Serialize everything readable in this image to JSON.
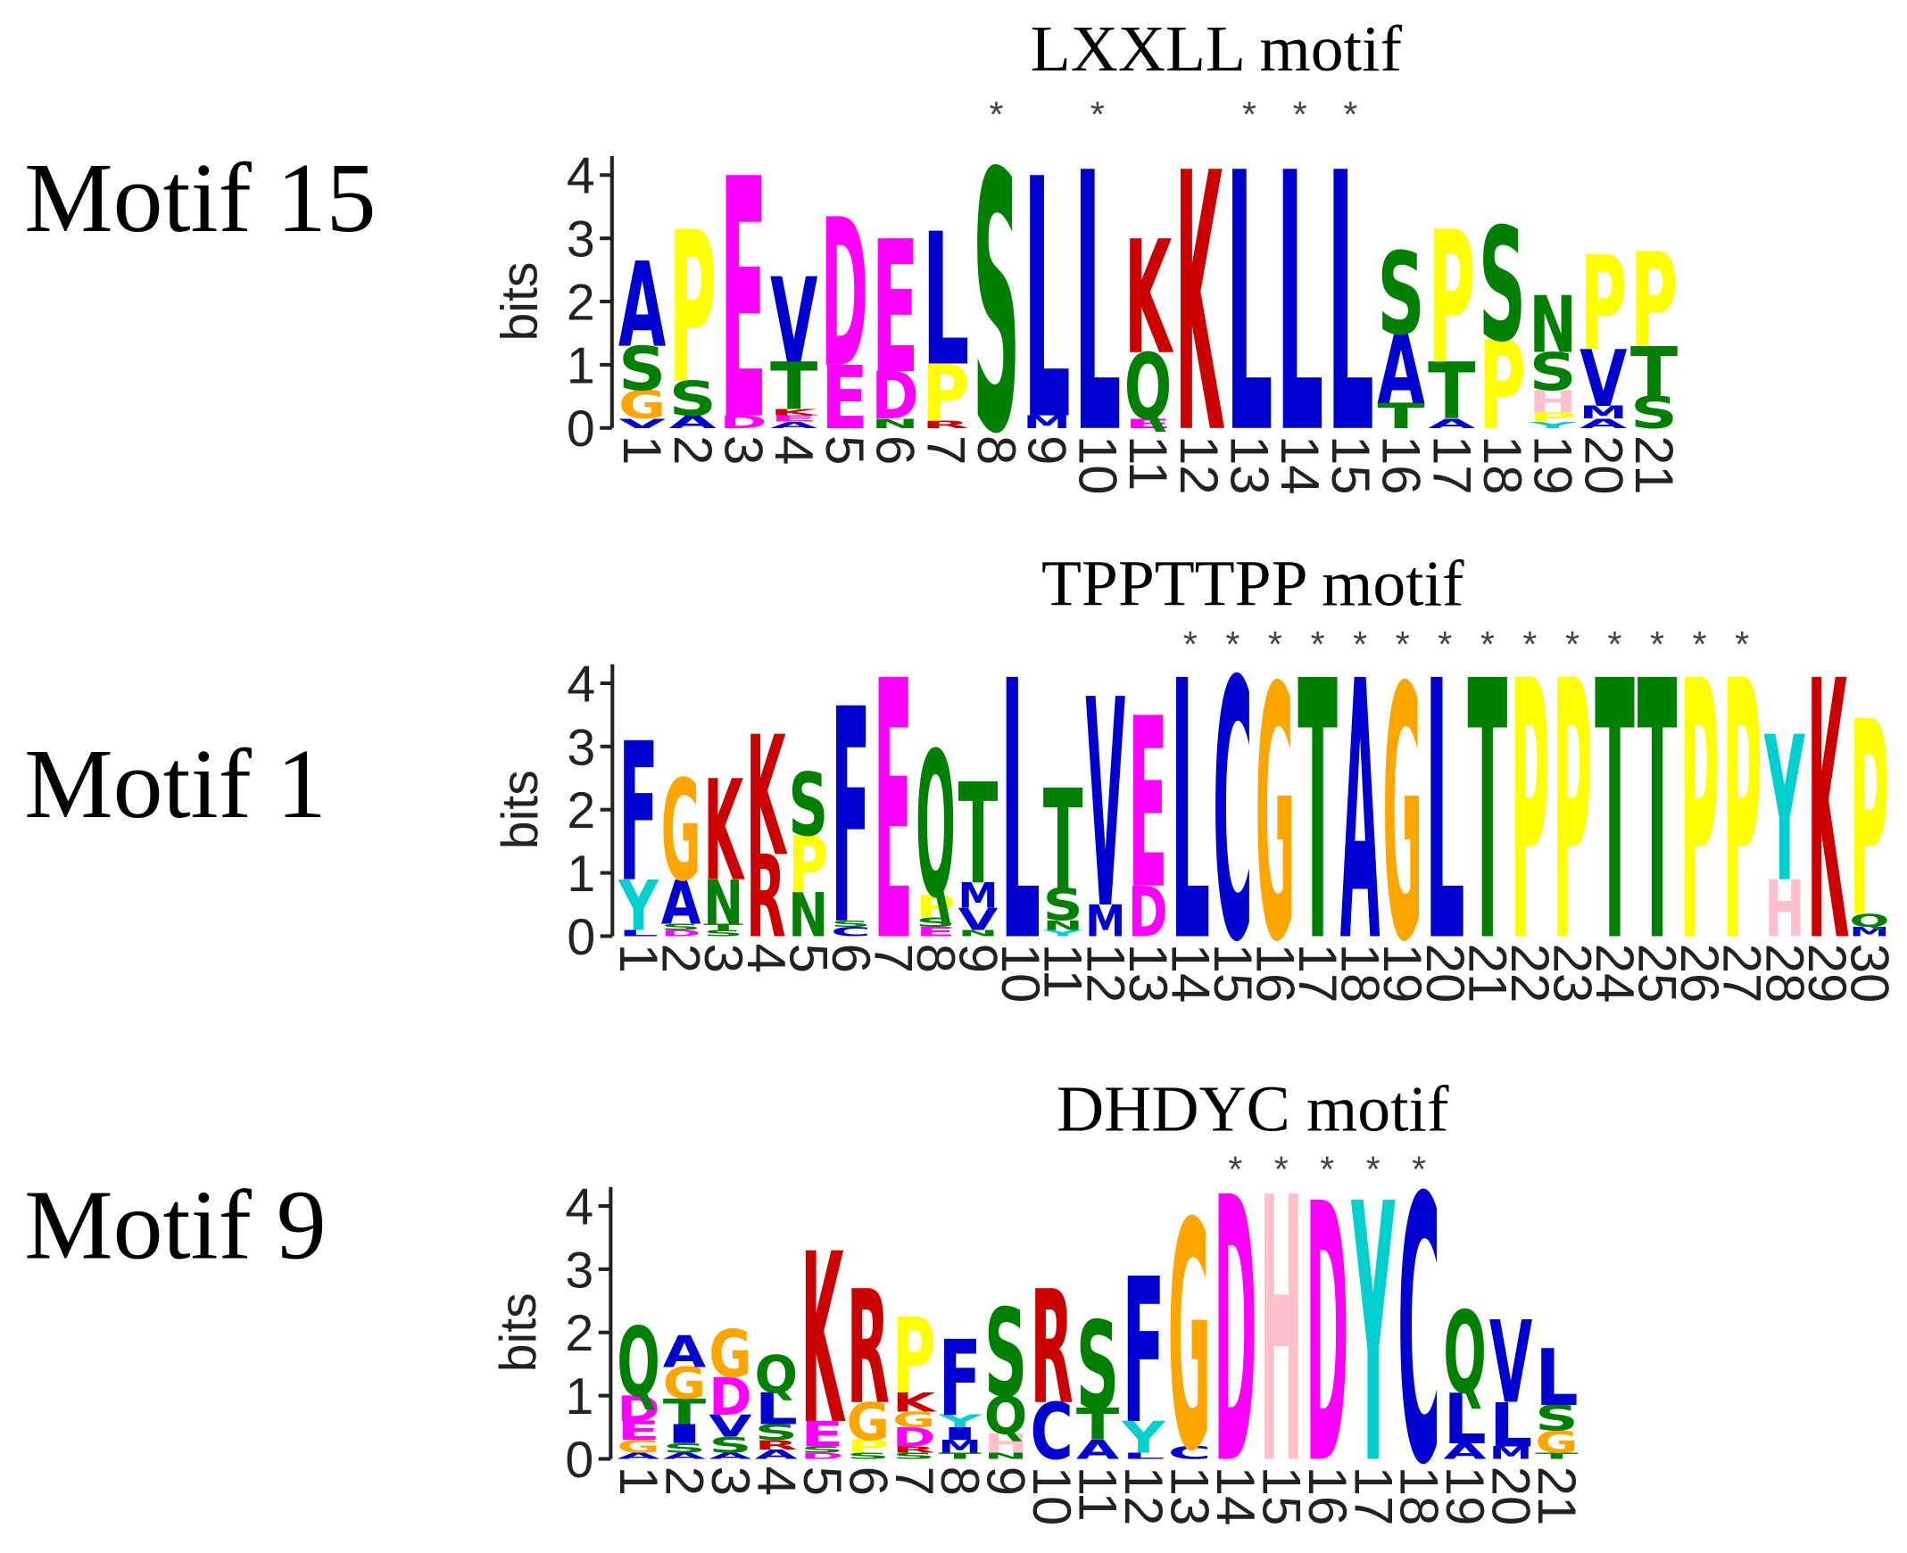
{
  "letter_colors": {
    "A": "#0000d0",
    "C": "#0000d0",
    "F": "#0000d0",
    "I": "#0000d0",
    "L": "#0000d0",
    "M": "#0000d0",
    "V": "#0000d0",
    "W": "#0000d0",
    "D": "#ff00ff",
    "E": "#ff00ff",
    "G": "#ffa500",
    "P": "#ffff00",
    "S": "#008000",
    "T": "#008000",
    "N": "#008000",
    "Q": "#008000",
    "K": "#cc0000",
    "R": "#cc0000",
    "H": "#ffc0cb",
    "Y": "#00d0d0"
  },
  "chart_data": [
    {
      "type": "logo",
      "panel_label": "Motif 15",
      "title": "LXXLL motif",
      "y_label": "bits",
      "ylim": [
        0,
        4.3
      ],
      "yticks": [
        0,
        1,
        2,
        3,
        4
      ],
      "categories": [
        1,
        2,
        3,
        4,
        5,
        6,
        7,
        8,
        9,
        10,
        11,
        12,
        13,
        14,
        15,
        16,
        17,
        18,
        19,
        20,
        21
      ],
      "markers": [
        null,
        null,
        null,
        null,
        null,
        null,
        null,
        "*",
        null,
        "*",
        null,
        null,
        "*",
        "*",
        "*",
        null,
        null,
        null,
        null,
        null,
        null
      ],
      "stacks": [
        [
          {
            "letter": "V",
            "height": 0.15
          },
          {
            "letter": "G",
            "height": 0.45
          },
          {
            "letter": "S",
            "height": 0.7
          },
          {
            "letter": "A",
            "height": 1.35
          }
        ],
        [
          {
            "letter": "A",
            "height": 0.2
          },
          {
            "letter": "S",
            "height": 0.55
          },
          {
            "letter": "P",
            "height": 2.4
          }
        ],
        [
          {
            "letter": "D",
            "height": 0.2
          },
          {
            "letter": "E",
            "height": 3.8
          }
        ],
        [
          {
            "letter": "A",
            "height": 0.1
          },
          {
            "letter": "E",
            "height": 0.1
          },
          {
            "letter": "K",
            "height": 0.1
          },
          {
            "letter": "T",
            "height": 0.75
          },
          {
            "letter": "V",
            "height": 1.35
          }
        ],
        [
          {
            "letter": "E",
            "height": 1.0
          },
          {
            "letter": "D",
            "height": 2.35
          }
        ],
        [
          {
            "letter": "N",
            "height": 0.15
          },
          {
            "letter": "D",
            "height": 0.75
          },
          {
            "letter": "E",
            "height": 2.1
          }
        ],
        [
          {
            "letter": "R",
            "height": 0.12
          },
          {
            "letter": "P",
            "height": 0.9
          },
          {
            "letter": "L",
            "height": 2.1
          }
        ],
        [
          {
            "letter": "S",
            "height": 4.1
          }
        ],
        [
          {
            "letter": "M",
            "height": 0.2
          },
          {
            "letter": "L",
            "height": 3.8
          }
        ],
        [
          {
            "letter": "L",
            "height": 4.1
          }
        ],
        [
          {
            "letter": "E",
            "height": 0.15
          },
          {
            "letter": "Q",
            "height": 1.05
          },
          {
            "letter": "K",
            "height": 1.8
          }
        ],
        [
          {
            "letter": "K",
            "height": 4.1
          }
        ],
        [
          {
            "letter": "L",
            "height": 4.1
          }
        ],
        [
          {
            "letter": "L",
            "height": 4.1
          }
        ],
        [
          {
            "letter": "L",
            "height": 4.1
          }
        ],
        [
          {
            "letter": "T",
            "height": 0.4
          },
          {
            "letter": "A",
            "height": 1.1
          },
          {
            "letter": "S",
            "height": 1.3
          }
        ],
        [
          {
            "letter": "A",
            "height": 0.15
          },
          {
            "letter": "T",
            "height": 0.9
          },
          {
            "letter": "P",
            "height": 2.1
          }
        ],
        [
          {
            "letter": "P",
            "height": 1.4
          },
          {
            "letter": "S",
            "height": 1.8
          }
        ],
        [
          {
            "letter": "Y",
            "height": 0.1
          },
          {
            "letter": "P",
            "height": 0.15
          },
          {
            "letter": "H",
            "height": 0.35
          },
          {
            "letter": "S",
            "height": 0.6
          },
          {
            "letter": "N",
            "height": 0.9
          }
        ],
        [
          {
            "letter": "A",
            "height": 0.15
          },
          {
            "letter": "M",
            "height": 0.2
          },
          {
            "letter": "V",
            "height": 0.9
          },
          {
            "letter": "P",
            "height": 1.5
          }
        ],
        [
          {
            "letter": "S",
            "height": 0.5
          },
          {
            "letter": "T",
            "height": 0.8
          },
          {
            "letter": "P",
            "height": 1.5
          }
        ]
      ]
    },
    {
      "type": "logo",
      "panel_label": "Motif 1",
      "title": "TPPTTPP motif",
      "y_label": "bits",
      "ylim": [
        0,
        4.3
      ],
      "yticks": [
        0,
        1,
        2,
        3,
        4
      ],
      "categories": [
        1,
        2,
        3,
        4,
        5,
        6,
        7,
        8,
        9,
        10,
        11,
        12,
        13,
        14,
        15,
        16,
        17,
        18,
        19,
        20,
        21,
        22,
        23,
        24,
        25,
        26,
        27,
        28,
        29,
        30
      ],
      "markers": [
        null,
        null,
        null,
        null,
        null,
        null,
        null,
        null,
        null,
        null,
        null,
        null,
        null,
        "*",
        "*",
        "*",
        "*",
        "*",
        "*",
        "*",
        "*",
        "*",
        "*",
        "*",
        "*",
        "*",
        "*",
        null,
        null,
        null
      ],
      "stacks": [
        [
          {
            "letter": "L",
            "height": 0.1
          },
          {
            "letter": "Y",
            "height": 0.8
          },
          {
            "letter": "F",
            "height": 2.2
          }
        ],
        [
          {
            "letter": "D",
            "height": 0.1
          },
          {
            "letter": "S",
            "height": 0.1
          },
          {
            "letter": "A",
            "height": 0.7
          },
          {
            "letter": "G",
            "height": 1.6
          }
        ],
        [
          {
            "letter": "S",
            "height": 0.1
          },
          {
            "letter": "T",
            "height": 0.1
          },
          {
            "letter": "N",
            "height": 0.7
          },
          {
            "letter": "K",
            "height": 1.6
          }
        ],
        [
          {
            "letter": "R",
            "height": 1.3
          },
          {
            "letter": "K",
            "height": 1.9
          }
        ],
        [
          {
            "letter": "N",
            "height": 0.7
          },
          {
            "letter": "P",
            "height": 0.9
          },
          {
            "letter": "S",
            "height": 1.0
          }
        ],
        [
          {
            "letter": "C",
            "height": 0.15
          },
          {
            "letter": "S",
            "height": 0.1
          },
          {
            "letter": "F",
            "height": 3.4
          }
        ],
        [
          {
            "letter": "E",
            "height": 4.1
          }
        ],
        [
          {
            "letter": "E",
            "height": 0.15
          },
          {
            "letter": "S",
            "height": 0.15
          },
          {
            "letter": "P",
            "height": 0.35
          },
          {
            "letter": "Q",
            "height": 2.3
          }
        ],
        [
          {
            "letter": "N",
            "height": 0.1
          },
          {
            "letter": "V",
            "height": 0.35
          },
          {
            "letter": "M",
            "height": 0.4
          },
          {
            "letter": "T",
            "height": 1.6
          }
        ],
        [
          {
            "letter": "L",
            "height": 4.1
          }
        ],
        [
          {
            "letter": "Y",
            "height": 0.1
          },
          {
            "letter": "N",
            "height": 0.15
          },
          {
            "letter": "S",
            "height": 0.5
          },
          {
            "letter": "T",
            "height": 1.6
          }
        ],
        [
          {
            "letter": "M",
            "height": 0.5
          },
          {
            "letter": "V",
            "height": 3.3
          }
        ],
        [
          {
            "letter": "D",
            "height": 0.8
          },
          {
            "letter": "E",
            "height": 2.7
          }
        ],
        [
          {
            "letter": "L",
            "height": 4.1
          }
        ],
        [
          {
            "letter": "C",
            "height": 4.1
          }
        ],
        [
          {
            "letter": "G",
            "height": 4.0
          }
        ],
        [
          {
            "letter": "T",
            "height": 4.1
          }
        ],
        [
          {
            "letter": "A",
            "height": 4.1
          }
        ],
        [
          {
            "letter": "G",
            "height": 4.0
          }
        ],
        [
          {
            "letter": "L",
            "height": 4.1
          }
        ],
        [
          {
            "letter": "T",
            "height": 4.1
          }
        ],
        [
          {
            "letter": "P",
            "height": 4.1
          }
        ],
        [
          {
            "letter": "P",
            "height": 4.1
          }
        ],
        [
          {
            "letter": "T",
            "height": 4.1
          }
        ],
        [
          {
            "letter": "T",
            "height": 4.1
          }
        ],
        [
          {
            "letter": "P",
            "height": 4.1
          }
        ],
        [
          {
            "letter": "P",
            "height": 4.1
          }
        ],
        [
          {
            "letter": "H",
            "height": 0.9
          },
          {
            "letter": "Y",
            "height": 2.3
          }
        ],
        [
          {
            "letter": "K",
            "height": 4.1
          }
        ],
        [
          {
            "letter": "M",
            "height": 0.15
          },
          {
            "letter": "Q",
            "height": 0.2
          },
          {
            "letter": "P",
            "height": 3.1
          }
        ]
      ]
    },
    {
      "type": "logo",
      "panel_label": "Motif 9",
      "title": "DHDYC motif",
      "y_label": "bits",
      "ylim": [
        0,
        4.3
      ],
      "yticks": [
        0,
        1,
        2,
        3,
        4
      ],
      "categories": [
        1,
        2,
        3,
        4,
        5,
        6,
        7,
        8,
        9,
        10,
        11,
        12,
        13,
        14,
        15,
        16,
        17,
        18,
        19,
        20,
        21
      ],
      "markers": [
        null,
        null,
        null,
        null,
        null,
        null,
        null,
        null,
        null,
        null,
        null,
        null,
        null,
        "*",
        "*",
        "*",
        "*",
        "*",
        null,
        null,
        null
      ],
      "stacks": [
        [
          {
            "letter": "A",
            "height": 0.1
          },
          {
            "letter": "G",
            "height": 0.2
          },
          {
            "letter": "E",
            "height": 0.3
          },
          {
            "letter": "D",
            "height": 0.4
          },
          {
            "letter": "Q",
            "height": 1.1
          }
        ],
        [
          {
            "letter": "A",
            "height": 0.1
          },
          {
            "letter": "S",
            "height": 0.15
          },
          {
            "letter": "I",
            "height": 0.3
          },
          {
            "letter": "T",
            "height": 0.4
          },
          {
            "letter": "G",
            "height": 0.5
          },
          {
            "letter": "A",
            "height": 0.5
          }
        ],
        [
          {
            "letter": "A",
            "height": 0.1
          },
          {
            "letter": "S",
            "height": 0.25
          },
          {
            "letter": "V",
            "height": 0.35
          },
          {
            "letter": "D",
            "height": 0.6
          },
          {
            "letter": "G",
            "height": 0.75
          }
        ],
        [
          {
            "letter": "A",
            "height": 0.15
          },
          {
            "letter": "R",
            "height": 0.15
          },
          {
            "letter": "S",
            "height": 0.25
          },
          {
            "letter": "L",
            "height": 0.5
          },
          {
            "letter": "Q",
            "height": 0.6
          }
        ],
        [
          {
            "letter": "D",
            "height": 0.1
          },
          {
            "letter": "S",
            "height": 0.1
          },
          {
            "letter": "E",
            "height": 0.4
          },
          {
            "letter": "K",
            "height": 2.7
          }
        ],
        [
          {
            "letter": "S",
            "height": 0.1
          },
          {
            "letter": "P",
            "height": 0.2
          },
          {
            "letter": "G",
            "height": 0.6
          },
          {
            "letter": "R",
            "height": 1.8
          }
        ],
        [
          {
            "letter": "S",
            "height": 0.1
          },
          {
            "letter": "R",
            "height": 0.1
          },
          {
            "letter": "D",
            "height": 0.3
          },
          {
            "letter": "G",
            "height": 0.25
          },
          {
            "letter": "K",
            "height": 0.3
          },
          {
            "letter": "P",
            "height": 1.2
          }
        ],
        [
          {
            "letter": "T",
            "height": 0.1
          },
          {
            "letter": "M",
            "height": 0.2
          },
          {
            "letter": "I",
            "height": 0.2
          },
          {
            "letter": "Y",
            "height": 0.2
          },
          {
            "letter": "F",
            "height": 1.2
          }
        ],
        [
          {
            "letter": "N",
            "height": 0.1
          },
          {
            "letter": "H",
            "height": 0.3
          },
          {
            "letter": "Q",
            "height": 0.6
          },
          {
            "letter": "S",
            "height": 1.4
          }
        ],
        [
          {
            "letter": "C",
            "height": 0.9
          },
          {
            "letter": "R",
            "height": 1.8
          }
        ],
        [
          {
            "letter": "A",
            "height": 0.3
          },
          {
            "letter": "T",
            "height": 0.5
          },
          {
            "letter": "S",
            "height": 1.4
          }
        ],
        [
          {
            "letter": "L",
            "height": 0.1
          },
          {
            "letter": "Y",
            "height": 0.5
          },
          {
            "letter": "F",
            "height": 2.3
          }
        ],
        [
          {
            "letter": "C",
            "height": 0.2
          },
          {
            "letter": "G",
            "height": 3.6
          }
        ],
        [
          {
            "letter": "D",
            "height": 4.2
          }
        ],
        [
          {
            "letter": "H",
            "height": 4.2
          }
        ],
        [
          {
            "letter": "D",
            "height": 4.1
          }
        ],
        [
          {
            "letter": "Y",
            "height": 4.1
          }
        ],
        [
          {
            "letter": "C",
            "height": 4.2
          }
        ],
        [
          {
            "letter": "A",
            "height": 0.25
          },
          {
            "letter": "L",
            "height": 0.8
          },
          {
            "letter": "Q",
            "height": 1.3
          }
        ],
        [
          {
            "letter": "M",
            "height": 0.2
          },
          {
            "letter": "L",
            "height": 0.7
          },
          {
            "letter": "V",
            "height": 1.3
          }
        ],
        [
          {
            "letter": "T",
            "height": 0.1
          },
          {
            "letter": "G",
            "height": 0.35
          },
          {
            "letter": "S",
            "height": 0.4
          },
          {
            "letter": "L",
            "height": 0.9
          }
        ]
      ]
    }
  ]
}
